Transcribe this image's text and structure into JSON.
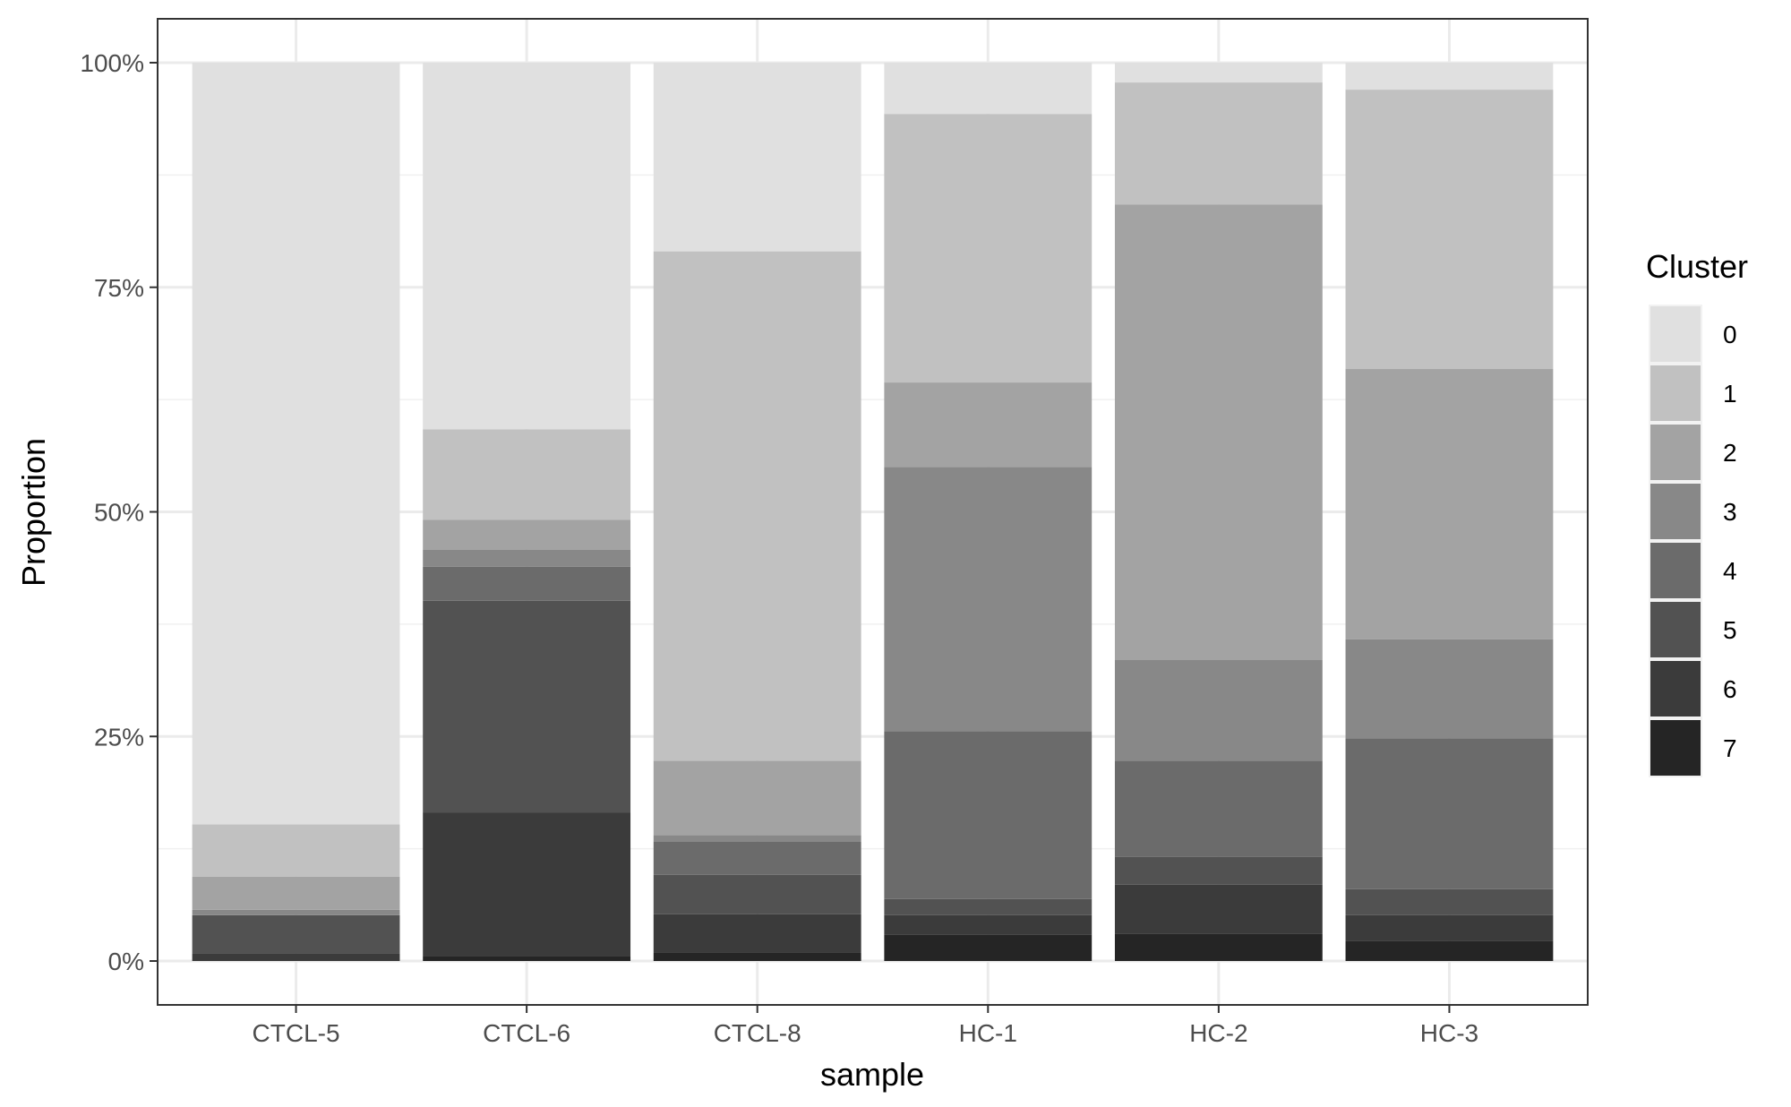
{
  "chart_data": {
    "type": "bar",
    "stacked": true,
    "xlabel": "sample",
    "ylabel": "Proportion",
    "ylim": [
      0,
      1
    ],
    "y_ticks": [
      "0%",
      "25%",
      "50%",
      "75%",
      "100%"
    ],
    "y_tick_values": [
      0,
      0.25,
      0.5,
      0.75,
      1.0
    ],
    "grid": true,
    "legend_position": "right",
    "legend_title": "Cluster",
    "categories": [
      "CTCL-5",
      "CTCL-6",
      "CTCL-8",
      "HC-1",
      "HC-2",
      "HC-3"
    ],
    "series": [
      {
        "name": "0",
        "color": "#e0e0e0",
        "values": [
          0.848,
          0.408,
          0.21,
          0.057,
          0.022,
          0.03
        ]
      },
      {
        "name": "1",
        "color": "#c1c1c1",
        "values": [
          0.058,
          0.101,
          0.567,
          0.299,
          0.136,
          0.311
        ]
      },
      {
        "name": "2",
        "color": "#a3a3a3",
        "values": [
          0.037,
          0.033,
          0.083,
          0.094,
          0.507,
          0.301
        ]
      },
      {
        "name": "3",
        "color": "#888888",
        "values": [
          0.006,
          0.019,
          0.007,
          0.294,
          0.112,
          0.11
        ]
      },
      {
        "name": "4",
        "color": "#6b6b6b",
        "values": [
          0.0,
          0.038,
          0.037,
          0.187,
          0.107,
          0.168
        ]
      },
      {
        "name": "5",
        "color": "#525252",
        "values": [
          0.043,
          0.236,
          0.044,
          0.018,
          0.031,
          0.029
        ]
      },
      {
        "name": "6",
        "color": "#3b3b3b",
        "values": [
          0.008,
          0.16,
          0.043,
          0.022,
          0.055,
          0.029
        ]
      },
      {
        "name": "7",
        "color": "#252525",
        "values": [
          0.0,
          0.005,
          0.009,
          0.029,
          0.03,
          0.022
        ]
      }
    ]
  }
}
